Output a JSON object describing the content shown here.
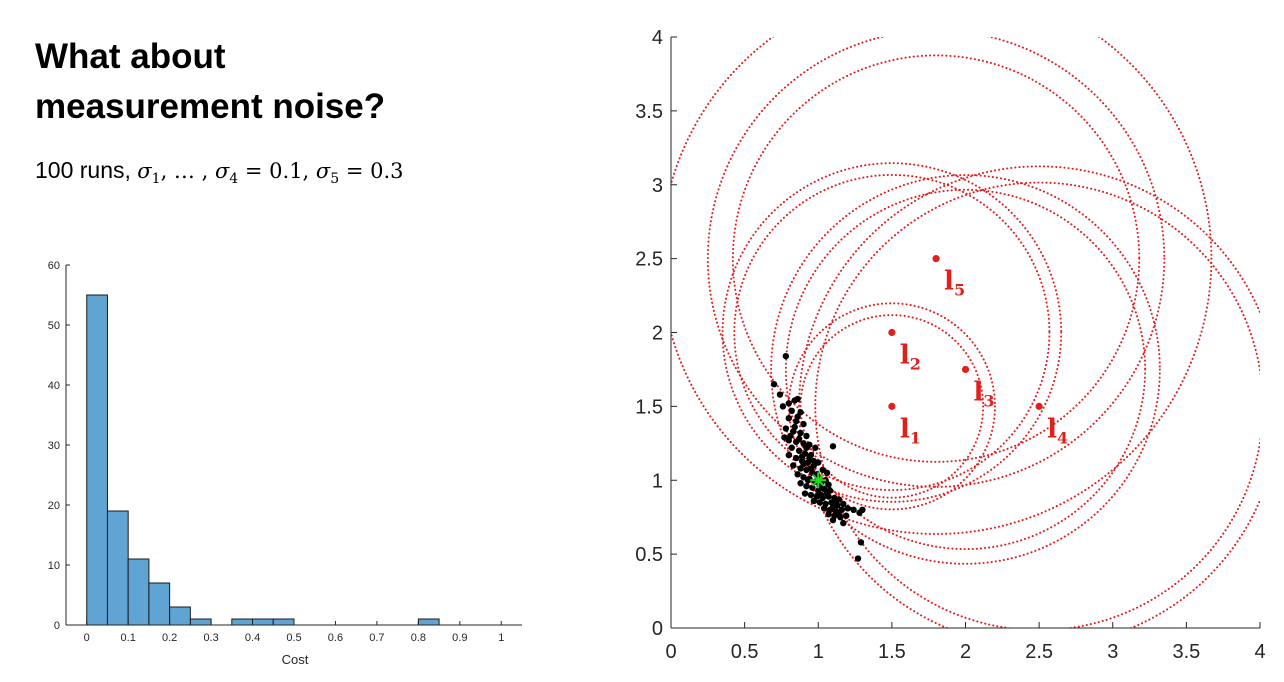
{
  "slide": {
    "title_line1": "What about",
    "title_line2": "measurement noise?",
    "subtitle_prefix": "100 runs, ",
    "subtitle_formula": {
      "s1_symbol": "σ",
      "s1_sub": "1",
      "mid": ", … , ",
      "s4_symbol": "σ",
      "s4_sub": "4",
      "eq1": " = 0.1, ",
      "s5_symbol": "σ",
      "s5_sub": "5",
      "eq2": " = 0.3"
    }
  },
  "colors": {
    "bar_fill": "#5fa4d2",
    "bar_edge": "#1a1a1a",
    "circle": "#e31a1c",
    "landmark": "#e0201b",
    "estimate": "#000000",
    "truth": "#18e01a",
    "axis": "#262626"
  },
  "chart_data": [
    {
      "type": "bar",
      "subtype": "histogram",
      "xlabel": "Cost",
      "ylabel": "",
      "xlim": [
        -0.05,
        1.05
      ],
      "ylim": [
        0,
        60
      ],
      "x_ticks": [
        0,
        0.1,
        0.2,
        0.3,
        0.4,
        0.5,
        0.6,
        0.7,
        0.8,
        0.9,
        1
      ],
      "x_tick_labels": [
        "0",
        "0.1",
        "0.2",
        "0.3",
        "0.4",
        "0.5",
        "0.6",
        "0.7",
        "0.8",
        "0.9",
        "1"
      ],
      "y_ticks": [
        0,
        10,
        20,
        30,
        40,
        50,
        60
      ],
      "y_tick_labels": [
        "0",
        "10",
        "20",
        "30",
        "40",
        "50",
        "60"
      ],
      "bin_width": 0.05,
      "bins": [
        {
          "start": 0.0,
          "count": 55
        },
        {
          "start": 0.05,
          "count": 19
        },
        {
          "start": 0.1,
          "count": 11
        },
        {
          "start": 0.15,
          "count": 7
        },
        {
          "start": 0.2,
          "count": 3
        },
        {
          "start": 0.25,
          "count": 1
        },
        {
          "start": 0.3,
          "count": 0
        },
        {
          "start": 0.35,
          "count": 1
        },
        {
          "start": 0.4,
          "count": 1
        },
        {
          "start": 0.45,
          "count": 1
        },
        {
          "start": 0.5,
          "count": 0
        },
        {
          "start": 0.55,
          "count": 0
        },
        {
          "start": 0.6,
          "count": 0
        },
        {
          "start": 0.65,
          "count": 0
        },
        {
          "start": 0.7,
          "count": 0
        },
        {
          "start": 0.75,
          "count": 0
        },
        {
          "start": 0.8,
          "count": 1
        }
      ],
      "grid": false
    },
    {
      "type": "scatter",
      "title": "",
      "xlabel": "",
      "ylabel": "",
      "xlim": [
        0,
        4
      ],
      "ylim": [
        0,
        4
      ],
      "x_ticks": [
        0,
        0.5,
        1,
        1.5,
        2,
        2.5,
        3,
        3.5,
        4
      ],
      "x_tick_labels": [
        "0",
        "0.5",
        "1",
        "1.5",
        "2",
        "2.5",
        "3",
        "3.5",
        "4"
      ],
      "y_ticks": [
        0,
        0.5,
        1,
        1.5,
        2,
        2.5,
        3,
        3.5,
        4
      ],
      "y_tick_labels": [
        "0",
        "0.5",
        "1",
        "1.5",
        "2",
        "2.5",
        "3",
        "3.5",
        "4"
      ],
      "grid": false,
      "landmarks": [
        {
          "label": "l",
          "sub": "1",
          "x": 1.5,
          "y": 1.5
        },
        {
          "label": "l",
          "sub": "2",
          "x": 1.5,
          "y": 2.0
        },
        {
          "label": "l",
          "sub": "3",
          "x": 2.0,
          "y": 1.75
        },
        {
          "label": "l",
          "sub": "4",
          "x": 2.5,
          "y": 1.5
        },
        {
          "label": "l",
          "sub": "5",
          "x": 1.8,
          "y": 2.5
        }
      ],
      "true_position": {
        "x": 1.0,
        "y": 1.0
      },
      "circles": [
        {
          "cx": 1.5,
          "cy": 1.5,
          "r": 0.62
        },
        {
          "cx": 1.5,
          "cy": 1.5,
          "r": 0.7
        },
        {
          "cx": 1.5,
          "cy": 2.0,
          "r": 1.15
        },
        {
          "cx": 1.5,
          "cy": 2.0,
          "r": 1.07
        },
        {
          "cx": 2.0,
          "cy": 1.75,
          "r": 1.32
        },
        {
          "cx": 2.0,
          "cy": 1.75,
          "r": 1.22
        },
        {
          "cx": 2.5,
          "cy": 1.5,
          "r": 1.63
        },
        {
          "cx": 2.5,
          "cy": 1.5,
          "r": 1.52
        },
        {
          "cx": 1.8,
          "cy": 2.5,
          "r": 1.87
        },
        {
          "cx": 1.8,
          "cy": 2.5,
          "r": 1.38
        },
        {
          "cx": 1.8,
          "cy": 2.5,
          "r": 1.55
        }
      ],
      "estimates": [
        {
          "x": 0.78,
          "y": 1.84
        },
        {
          "x": 0.7,
          "y": 1.65
        },
        {
          "x": 0.74,
          "y": 1.58
        },
        {
          "x": 0.8,
          "y": 1.52
        },
        {
          "x": 0.84,
          "y": 1.54
        },
        {
          "x": 0.86,
          "y": 1.55
        },
        {
          "x": 0.76,
          "y": 1.5
        },
        {
          "x": 0.82,
          "y": 1.47
        },
        {
          "x": 0.88,
          "y": 1.46
        },
        {
          "x": 0.8,
          "y": 1.42
        },
        {
          "x": 0.85,
          "y": 1.4
        },
        {
          "x": 0.9,
          "y": 1.38
        },
        {
          "x": 0.78,
          "y": 1.35
        },
        {
          "x": 0.83,
          "y": 1.33
        },
        {
          "x": 0.88,
          "y": 1.32
        },
        {
          "x": 0.92,
          "y": 1.3
        },
        {
          "x": 0.77,
          "y": 1.29
        },
        {
          "x": 0.8,
          "y": 1.27
        },
        {
          "x": 0.85,
          "y": 1.26
        },
        {
          "x": 0.9,
          "y": 1.25
        },
        {
          "x": 0.94,
          "y": 1.24
        },
        {
          "x": 0.98,
          "y": 1.22
        },
        {
          "x": 1.1,
          "y": 1.23
        },
        {
          "x": 0.82,
          "y": 1.22
        },
        {
          "x": 0.87,
          "y": 1.2
        },
        {
          "x": 0.91,
          "y": 1.18
        },
        {
          "x": 0.95,
          "y": 1.17
        },
        {
          "x": 0.8,
          "y": 1.17
        },
        {
          "x": 0.85,
          "y": 1.15
        },
        {
          "x": 0.89,
          "y": 1.13
        },
        {
          "x": 0.93,
          "y": 1.12
        },
        {
          "x": 0.97,
          "y": 1.1
        },
        {
          "x": 1.0,
          "y": 1.12
        },
        {
          "x": 0.83,
          "y": 1.1
        },
        {
          "x": 0.88,
          "y": 1.08
        },
        {
          "x": 0.92,
          "y": 1.07
        },
        {
          "x": 0.96,
          "y": 1.05
        },
        {
          "x": 1.03,
          "y": 1.07
        },
        {
          "x": 1.06,
          "y": 1.05
        },
        {
          "x": 0.86,
          "y": 1.04
        },
        {
          "x": 0.9,
          "y": 1.02
        },
        {
          "x": 0.94,
          "y": 1.01
        },
        {
          "x": 0.98,
          "y": 0.99
        },
        {
          "x": 1.02,
          "y": 0.98
        },
        {
          "x": 1.05,
          "y": 1.0
        },
        {
          "x": 0.88,
          "y": 0.98
        },
        {
          "x": 0.92,
          "y": 0.96
        },
        {
          "x": 0.96,
          "y": 0.95
        },
        {
          "x": 1.0,
          "y": 0.93
        },
        {
          "x": 1.04,
          "y": 0.94
        },
        {
          "x": 1.08,
          "y": 0.93
        },
        {
          "x": 0.91,
          "y": 0.91
        },
        {
          "x": 0.95,
          "y": 0.9
        },
        {
          "x": 0.99,
          "y": 0.89
        },
        {
          "x": 1.03,
          "y": 0.88
        },
        {
          "x": 1.07,
          "y": 0.89
        },
        {
          "x": 1.11,
          "y": 0.88
        },
        {
          "x": 1.14,
          "y": 0.87
        },
        {
          "x": 0.97,
          "y": 0.86
        },
        {
          "x": 1.01,
          "y": 0.85
        },
        {
          "x": 1.05,
          "y": 0.84
        },
        {
          "x": 1.09,
          "y": 0.85
        },
        {
          "x": 1.13,
          "y": 0.83
        },
        {
          "x": 1.17,
          "y": 0.84
        },
        {
          "x": 1.04,
          "y": 0.81
        },
        {
          "x": 1.08,
          "y": 0.8
        },
        {
          "x": 1.12,
          "y": 0.79
        },
        {
          "x": 1.16,
          "y": 0.8
        },
        {
          "x": 1.2,
          "y": 0.81
        },
        {
          "x": 1.07,
          "y": 0.77
        },
        {
          "x": 1.11,
          "y": 0.76
        },
        {
          "x": 1.15,
          "y": 0.75
        },
        {
          "x": 1.24,
          "y": 0.8
        },
        {
          "x": 1.28,
          "y": 0.78
        },
        {
          "x": 1.3,
          "y": 0.8
        },
        {
          "x": 1.1,
          "y": 0.73
        },
        {
          "x": 1.17,
          "y": 0.71
        },
        {
          "x": 1.29,
          "y": 0.58
        },
        {
          "x": 1.27,
          "y": 0.47
        },
        {
          "x": 0.93,
          "y": 1.0
        },
        {
          "x": 0.99,
          "y": 1.04
        },
        {
          "x": 1.01,
          "y": 0.96
        },
        {
          "x": 0.95,
          "y": 1.08
        },
        {
          "x": 1.06,
          "y": 0.91
        },
        {
          "x": 0.87,
          "y": 1.28
        },
        {
          "x": 0.84,
          "y": 1.36
        },
        {
          "x": 0.89,
          "y": 1.16
        },
        {
          "x": 1.1,
          "y": 0.82
        },
        {
          "x": 1.14,
          "y": 0.78
        },
        {
          "x": 1.02,
          "y": 0.9
        },
        {
          "x": 0.97,
          "y": 1.13
        },
        {
          "x": 0.92,
          "y": 1.22
        },
        {
          "x": 1.19,
          "y": 0.76
        },
        {
          "x": 0.86,
          "y": 1.43
        },
        {
          "x": 0.81,
          "y": 1.3
        },
        {
          "x": 1.12,
          "y": 0.86
        },
        {
          "x": 0.94,
          "y": 1.15
        },
        {
          "x": 1.07,
          "y": 0.97
        },
        {
          "x": 0.9,
          "y": 1.11
        },
        {
          "x": 1.0,
          "y": 1.01
        }
      ]
    }
  ]
}
